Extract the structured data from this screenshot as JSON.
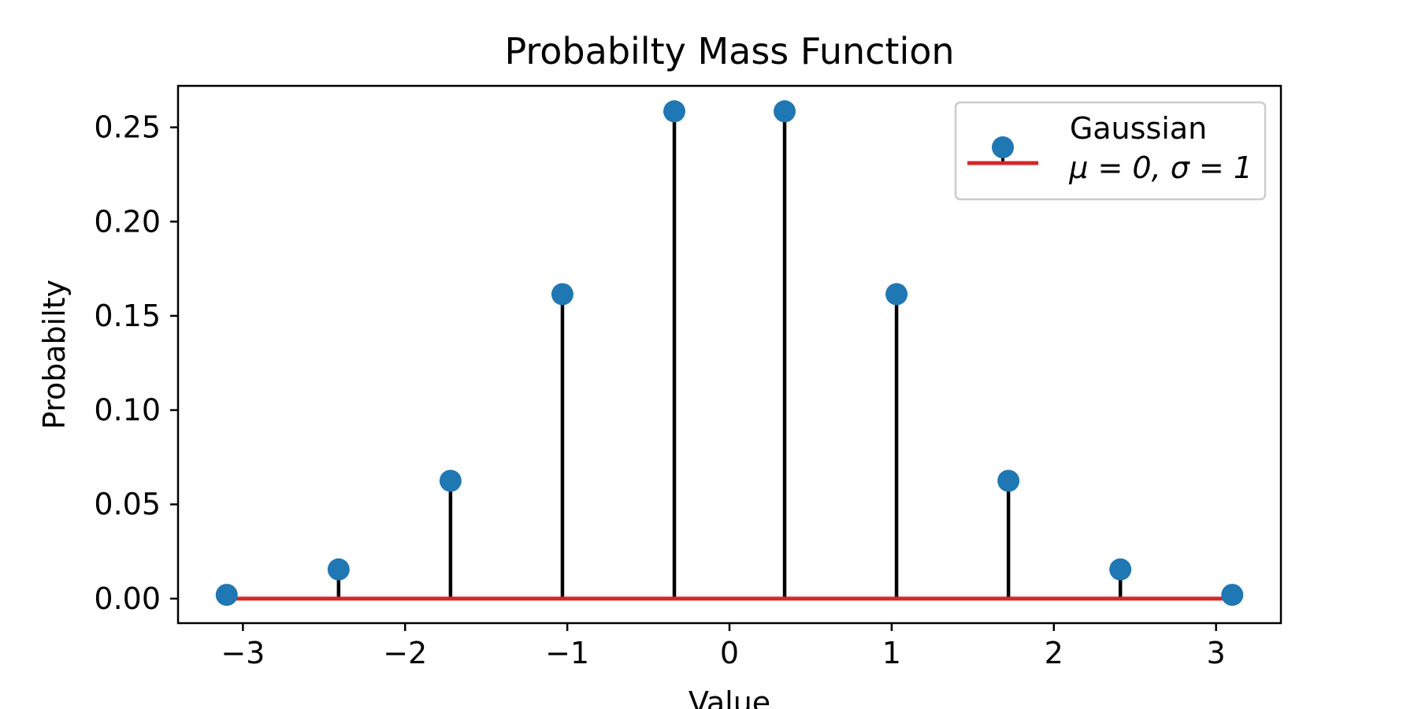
{
  "chart_data": {
    "type": "stem",
    "title": "Probabilty Mass Function",
    "xlabel": "Value",
    "ylabel": "Probabilty",
    "xlim": [
      -3.4,
      3.4
    ],
    "ylim": [
      -0.013,
      0.272
    ],
    "xticks": [
      -3,
      -2,
      -1,
      0,
      1,
      2,
      3
    ],
    "xtick_labels": [
      "−3",
      "−2",
      "−1",
      "0",
      "1",
      "2",
      "3"
    ],
    "yticks": [
      0.0,
      0.05,
      0.1,
      0.15,
      0.2,
      0.25
    ],
    "ytick_labels": [
      "0.00",
      "0.05",
      "0.10",
      "0.15",
      "0.20",
      "0.25"
    ],
    "legend": {
      "location": "top-right",
      "line1": "Gaussian",
      "line2": "μ = 0, σ = 1"
    },
    "colors": {
      "marker": "#1f77b4",
      "stem": "#000000",
      "baseline": "#d62728"
    },
    "grid": false,
    "series": [
      {
        "name": "Gaussian μ = 0, σ = 1",
        "x": [
          -3.1,
          -2.41,
          -1.72,
          -1.03,
          -0.34,
          0.34,
          1.03,
          1.72,
          2.41,
          3.1
        ],
        "y": [
          0.002,
          0.0155,
          0.0625,
          0.1615,
          0.2585,
          0.2585,
          0.1615,
          0.0625,
          0.0155,
          0.002
        ]
      }
    ]
  }
}
